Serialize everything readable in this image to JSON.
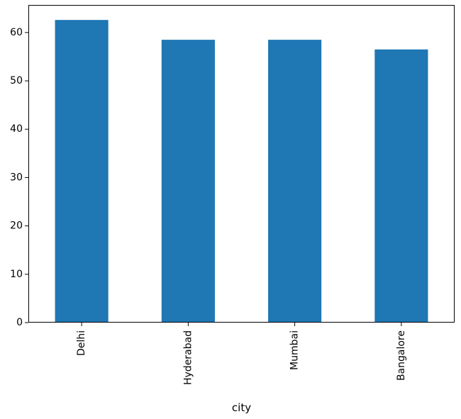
{
  "chart_data": {
    "type": "bar",
    "title": "",
    "xlabel": "city",
    "ylabel": "",
    "categories": [
      "Delhi",
      "Hyderabad",
      "Mumbai",
      "Bangalore"
    ],
    "values": [
      62.6,
      58.5,
      58.5,
      56.5
    ],
    "ylim": [
      0,
      65.7
    ],
    "yticks": [
      "0",
      "10",
      "20",
      "30",
      "40",
      "50",
      "60"
    ],
    "grid": false,
    "legend": "none",
    "x_tick_rotation": "vertical",
    "bar_color": "#1f77b4",
    "axis_color": "#000000"
  }
}
